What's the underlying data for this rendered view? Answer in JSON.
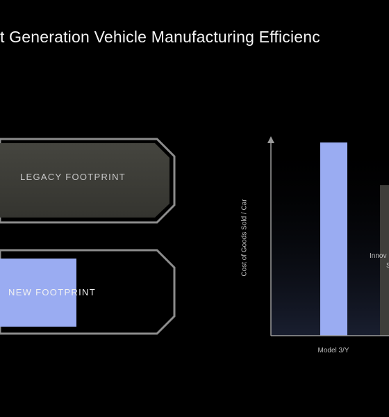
{
  "slide": {
    "title": "t Generation Vehicle Manufacturing Efficienc"
  },
  "footprints": {
    "legacy_label": "LEGACY FOOTPRINT",
    "new_label": "NEW FOOTPRINT"
  },
  "chart_data": {
    "type": "bar",
    "title": "",
    "xlabel": "",
    "ylabel": "Cost of Goods Sold / Car",
    "categories": [
      "Model 3/Y",
      ""
    ],
    "values": [
      100,
      78
    ],
    "annotations": [
      "Innov",
      "S"
    ],
    "colors": {
      "model_bar": "#9aacf2",
      "next_bar": "#3e3e3a",
      "axis": "#9a9a9a"
    }
  },
  "colors": {
    "background": "#000000",
    "legacy_fill": "#3b3b37",
    "new_fill": "#9aacf2",
    "outline": "#8c8c8c"
  }
}
